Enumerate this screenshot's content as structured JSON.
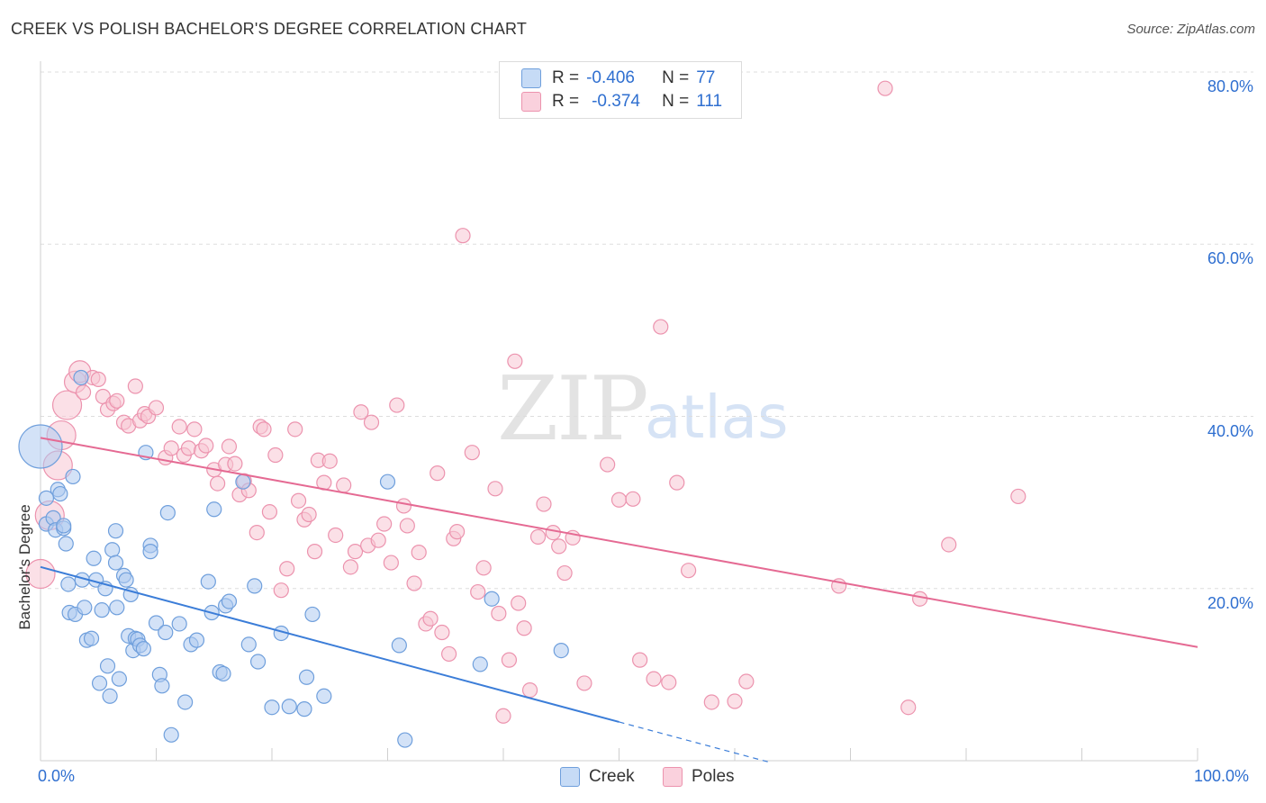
{
  "title": "CREEK VS POLISH BACHELOR'S DEGREE CORRELATION CHART",
  "source": "Source: ZipAtlas.com",
  "watermark": {
    "zip": "ZIP",
    "atlas": "atlas"
  },
  "legend_top": {
    "rows": [
      {
        "r_label": "R =",
        "r_value": "-0.406",
        "n_label": "N =",
        "n_value": "77"
      },
      {
        "r_label": "R =",
        "r_value": "-0.374",
        "n_label": "N =",
        "n_value": "111"
      }
    ]
  },
  "legend_bottom": [
    "Creek",
    "Poles"
  ],
  "colors": {
    "creek_fill": "#aecbf0",
    "creek_stroke": "#6f9fdc",
    "creek_line": "#3b7dd8",
    "poles_fill": "#f7c6d3",
    "poles_stroke": "#ec93ae",
    "poles_line": "#e56a93",
    "tick_text": "#2f6fd0",
    "grid": "#dddddd"
  },
  "chart_data": {
    "type": "scatter",
    "title": "CREEK VS POLISH BACHELOR'S DEGREE CORRELATION CHART",
    "xlabel": "",
    "ylabel": "Bachelor's Degree",
    "xlim": [
      0,
      100
    ],
    "ylim": [
      0,
      80
    ],
    "x_tick_labels": [
      "0.0%",
      "100.0%"
    ],
    "y_tick_values": [
      20,
      40,
      60,
      80
    ],
    "y_tick_labels": [
      "20.0%",
      "40.0%",
      "60.0%",
      "80.0%"
    ],
    "grid": true,
    "legend_placement": "top-center",
    "series": [
      {
        "name": "Creek",
        "R": -0.406,
        "N": 77,
        "trend": {
          "x0": 0,
          "y0": 22.5,
          "x1": 50,
          "y1": 4.5,
          "dashed_to_x": 63
        },
        "points": [
          [
            0,
            36.5,
            3
          ],
          [
            0.5,
            30.5,
            1
          ],
          [
            0.5,
            27.5,
            1
          ],
          [
            1.1,
            28.2,
            1
          ],
          [
            1.3,
            26.8,
            1
          ],
          [
            1.5,
            31.5,
            1
          ],
          [
            1.7,
            31,
            1
          ],
          [
            2,
            27,
            1
          ],
          [
            2.2,
            25.2,
            1
          ],
          [
            2.4,
            20.5,
            1
          ],
          [
            2.5,
            17.2,
            1
          ],
          [
            2.8,
            33,
            1
          ],
          [
            3,
            17,
            1
          ],
          [
            3.5,
            44.5,
            1
          ],
          [
            3.6,
            21,
            1
          ],
          [
            3.8,
            17.8,
            1
          ],
          [
            4,
            14,
            1
          ],
          [
            4.4,
            14.2,
            1
          ],
          [
            4.6,
            23.5,
            1
          ],
          [
            4.8,
            21,
            1
          ],
          [
            5.1,
            9,
            1
          ],
          [
            5.3,
            17.5,
            1
          ],
          [
            5.6,
            20,
            1
          ],
          [
            5.8,
            11,
            1
          ],
          [
            6,
            7.5,
            1
          ],
          [
            6.2,
            24.5,
            1
          ],
          [
            6.5,
            23,
            1
          ],
          [
            6.6,
            17.8,
            1
          ],
          [
            6.8,
            9.5,
            1
          ],
          [
            7.2,
            21.5,
            1
          ],
          [
            7.4,
            21,
            1
          ],
          [
            7.6,
            14.5,
            1
          ],
          [
            7.8,
            19.3,
            1
          ],
          [
            8,
            12.8,
            1
          ],
          [
            8.2,
            14.2,
            1
          ],
          [
            8.4,
            14.1,
            1
          ],
          [
            8.6,
            13.4,
            1
          ],
          [
            8.9,
            13,
            1
          ],
          [
            9.1,
            35.8,
            1
          ],
          [
            9.5,
            25,
            1
          ],
          [
            9.5,
            24.3,
            1
          ],
          [
            10,
            16,
            1
          ],
          [
            10.3,
            10,
            1
          ],
          [
            10.5,
            8.7,
            1
          ],
          [
            10.8,
            14.9,
            1
          ],
          [
            11,
            28.8,
            1
          ],
          [
            11.3,
            3,
            1
          ],
          [
            12,
            15.9,
            1
          ],
          [
            12.5,
            6.8,
            1
          ],
          [
            13,
            13.5,
            1
          ],
          [
            13.5,
            14,
            1
          ],
          [
            14.5,
            20.8,
            1
          ],
          [
            14.8,
            17.2,
            1
          ],
          [
            15,
            29.2,
            1
          ],
          [
            15.5,
            10.3,
            1
          ],
          [
            15.8,
            10.1,
            1
          ],
          [
            16,
            18,
            1
          ],
          [
            16.3,
            18.5,
            1
          ],
          [
            17.5,
            32.4,
            1
          ],
          [
            18,
            13.5,
            1
          ],
          [
            18.5,
            20.3,
            1
          ],
          [
            18.8,
            11.5,
            1
          ],
          [
            20,
            6.2,
            1
          ],
          [
            20.8,
            14.8,
            1
          ],
          [
            21.5,
            6.3,
            1
          ],
          [
            22.8,
            6,
            1
          ],
          [
            23,
            9.7,
            1
          ],
          [
            23.5,
            17,
            1
          ],
          [
            24.5,
            7.5,
            1
          ],
          [
            30,
            32.4,
            1
          ],
          [
            31.5,
            2.4,
            1
          ],
          [
            31,
            13.4,
            1
          ],
          [
            38,
            11.2,
            1
          ],
          [
            39,
            18.8,
            1
          ],
          [
            45,
            12.8,
            1
          ],
          [
            2,
            27.3,
            1
          ],
          [
            6.5,
            26.7,
            1
          ]
        ]
      },
      {
        "name": "Poles",
        "R": -0.374,
        "N": 111,
        "trend": {
          "x0": 0,
          "y0": 37.5,
          "x1": 100,
          "y1": 13.2
        },
        "points": [
          [
            0,
            21.7,
            2
          ],
          [
            0.8,
            28.5,
            2
          ],
          [
            1.5,
            34.3,
            2
          ],
          [
            1.8,
            37.8,
            2
          ],
          [
            2.3,
            41.3,
            2
          ],
          [
            3,
            44,
            1.5
          ],
          [
            3.4,
            45.2,
            1.5
          ],
          [
            3.7,
            42.8,
            1
          ],
          [
            4.5,
            44.5,
            1
          ],
          [
            5,
            44.3,
            1
          ],
          [
            5.4,
            42.3,
            1
          ],
          [
            5.8,
            40.8,
            1
          ],
          [
            6.3,
            41.5,
            1
          ],
          [
            6.6,
            41.8,
            1
          ],
          [
            7.2,
            39.3,
            1
          ],
          [
            7.6,
            38.9,
            1
          ],
          [
            8.2,
            43.5,
            1
          ],
          [
            8.6,
            39.5,
            1
          ],
          [
            9,
            40.3,
            1
          ],
          [
            9.3,
            40,
            1
          ],
          [
            10,
            41,
            1
          ],
          [
            10.8,
            35.2,
            1
          ],
          [
            11.3,
            36.3,
            1
          ],
          [
            12,
            38.8,
            1
          ],
          [
            12.4,
            35.5,
            1
          ],
          [
            12.8,
            36.3,
            1
          ],
          [
            13.3,
            38.5,
            1
          ],
          [
            13.9,
            36,
            1
          ],
          [
            14.3,
            36.6,
            1
          ],
          [
            15,
            33.8,
            1
          ],
          [
            15.3,
            32.2,
            1
          ],
          [
            16,
            34.4,
            1
          ],
          [
            16.3,
            36.5,
            1
          ],
          [
            16.8,
            34.5,
            1
          ],
          [
            17.2,
            30.9,
            1
          ],
          [
            17.6,
            32.5,
            1
          ],
          [
            18,
            31.4,
            1
          ],
          [
            18.7,
            26.5,
            1
          ],
          [
            19,
            38.8,
            1
          ],
          [
            19.3,
            38.5,
            1
          ],
          [
            19.8,
            28.9,
            1
          ],
          [
            20.3,
            35.5,
            1
          ],
          [
            20.8,
            19.8,
            1
          ],
          [
            21.3,
            22.3,
            1
          ],
          [
            22,
            38.5,
            1
          ],
          [
            22.3,
            30.2,
            1
          ],
          [
            22.8,
            28,
            1
          ],
          [
            23.2,
            28.6,
            1
          ],
          [
            23.7,
            24.3,
            1
          ],
          [
            24,
            34.9,
            1
          ],
          [
            24.5,
            32.3,
            1
          ],
          [
            25,
            34.8,
            1
          ],
          [
            25.5,
            26.2,
            1
          ],
          [
            26.2,
            32,
            1
          ],
          [
            26.8,
            22.5,
            1
          ],
          [
            27.2,
            24.3,
            1
          ],
          [
            27.7,
            40.5,
            1
          ],
          [
            28.3,
            25,
            1
          ],
          [
            28.6,
            39.3,
            1
          ],
          [
            29.2,
            25.6,
            1
          ],
          [
            29.7,
            27.5,
            1
          ],
          [
            30.3,
            23,
            1
          ],
          [
            30.8,
            41.3,
            1
          ],
          [
            31.4,
            29.6,
            1
          ],
          [
            31.7,
            27.3,
            1
          ],
          [
            32.3,
            20.6,
            1
          ],
          [
            32.7,
            24.2,
            1
          ],
          [
            33.3,
            15.9,
            1
          ],
          [
            33.7,
            16.5,
            1
          ],
          [
            34.3,
            33.4,
            1
          ],
          [
            34.7,
            14.9,
            1
          ],
          [
            35.3,
            12.4,
            1
          ],
          [
            35.7,
            25.8,
            1
          ],
          [
            36,
            26.6,
            1
          ],
          [
            36.5,
            61,
            1
          ],
          [
            37.3,
            35.8,
            1
          ],
          [
            37.8,
            19.6,
            1
          ],
          [
            38.3,
            22.4,
            1
          ],
          [
            39.3,
            31.6,
            1
          ],
          [
            39.6,
            17.1,
            1
          ],
          [
            40,
            5.2,
            1
          ],
          [
            40.5,
            11.7,
            1
          ],
          [
            41,
            46.4,
            1
          ],
          [
            41.3,
            18.3,
            1
          ],
          [
            41.8,
            15.4,
            1
          ],
          [
            42.3,
            8.2,
            1
          ],
          [
            43,
            26,
            1
          ],
          [
            43.5,
            29.8,
            1
          ],
          [
            44.3,
            26.5,
            1
          ],
          [
            44.8,
            24.9,
            1
          ],
          [
            45.3,
            21.8,
            1
          ],
          [
            46,
            25.9,
            1
          ],
          [
            47,
            9,
            1
          ],
          [
            49,
            34.4,
            1
          ],
          [
            50,
            30.3,
            1
          ],
          [
            51.2,
            30.4,
            1
          ],
          [
            51.8,
            11.7,
            1
          ],
          [
            53,
            9.5,
            1
          ],
          [
            53.6,
            50.4,
            1
          ],
          [
            54.3,
            9.1,
            1
          ],
          [
            55,
            32.3,
            1
          ],
          [
            56,
            22.1,
            1
          ],
          [
            58,
            6.8,
            1
          ],
          [
            60,
            6.9,
            1
          ],
          [
            61,
            9.2,
            1
          ],
          [
            69,
            20.3,
            1
          ],
          [
            73,
            78.1,
            1
          ],
          [
            75,
            6.2,
            1
          ],
          [
            76,
            18.8,
            1
          ],
          [
            78.5,
            25.1,
            1
          ],
          [
            84.5,
            30.7,
            1
          ]
        ]
      }
    ]
  }
}
